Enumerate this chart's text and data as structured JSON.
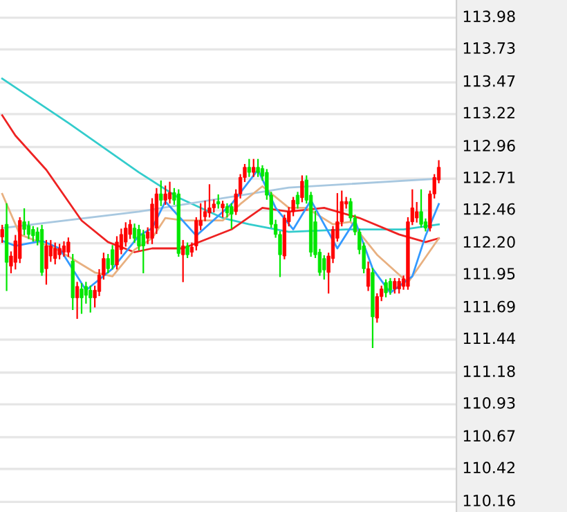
{
  "chart_data": {
    "type": "candlestick",
    "categories": [
      null,
      null,
      null,
      null,
      null,
      null,
      null,
      null,
      null,
      null,
      null,
      null,
      null,
      null,
      null,
      null,
      null,
      null,
      null,
      null,
      null,
      null,
      null,
      null,
      null,
      null,
      null,
      null,
      null,
      null,
      null,
      null,
      null,
      null,
      null,
      null,
      null,
      null,
      null,
      null,
      null,
      null,
      null,
      null,
      null,
      null,
      null,
      null,
      null,
      null,
      null,
      null,
      null,
      null,
      null,
      null,
      null,
      null,
      null,
      null,
      null,
      null,
      null,
      null,
      null,
      null,
      null,
      null,
      null,
      null,
      null,
      null,
      null,
      null,
      null,
      null,
      null,
      null,
      null,
      null,
      null,
      null,
      null,
      null,
      null,
      null,
      null,
      null,
      null,
      null,
      null,
      null,
      null,
      null,
      null,
      null,
      null,
      null,
      null,
      null
    ],
    "ohlc": [
      [
        112.25,
        112.34,
        112.21,
        112.31
      ],
      [
        112.35,
        112.51,
        111.83,
        112.05
      ],
      [
        112.02,
        112.13,
        111.97,
        112.1
      ],
      [
        112.05,
        112.26,
        112.0,
        112.22
      ],
      [
        112.08,
        112.4,
        112.05,
        112.38
      ],
      [
        112.37,
        112.47,
        112.27,
        112.31
      ],
      [
        112.34,
        112.37,
        112.24,
        112.27
      ],
      [
        112.31,
        112.33,
        112.22,
        112.26
      ],
      [
        112.29,
        112.32,
        112.19,
        112.22
      ],
      [
        112.31,
        112.34,
        111.95,
        111.97
      ],
      [
        112.0,
        112.22,
        111.88,
        112.18
      ],
      [
        112.1,
        112.22,
        112.06,
        112.18
      ],
      [
        112.08,
        112.2,
        112.04,
        112.16
      ],
      [
        112.11,
        112.19,
        112.08,
        112.16
      ],
      [
        112.13,
        112.21,
        112.1,
        112.18
      ],
      [
        112.13,
        112.24,
        112.1,
        112.21
      ],
      [
        112.06,
        112.11,
        111.68,
        111.77
      ],
      [
        111.77,
        111.89,
        111.61,
        111.86
      ],
      [
        111.84,
        111.88,
        111.65,
        111.77
      ],
      [
        111.86,
        111.89,
        111.73,
        111.79
      ],
      [
        111.83,
        111.86,
        111.66,
        111.77
      ],
      [
        111.77,
        111.86,
        111.7,
        111.83
      ],
      [
        111.82,
        111.99,
        111.79,
        111.95
      ],
      [
        111.95,
        112.12,
        111.92,
        112.08
      ],
      [
        112.08,
        112.11,
        111.97,
        112.0
      ],
      [
        112.15,
        112.18,
        112.0,
        112.03
      ],
      [
        112.03,
        112.25,
        112.0,
        112.21
      ],
      [
        112.15,
        112.31,
        112.12,
        112.27
      ],
      [
        112.21,
        112.36,
        112.18,
        112.32
      ],
      [
        112.27,
        112.38,
        112.24,
        112.35
      ],
      [
        112.32,
        112.35,
        112.21,
        112.24
      ],
      [
        112.31,
        112.34,
        112.15,
        112.18
      ],
      [
        112.27,
        112.3,
        111.97,
        112.18
      ],
      [
        112.24,
        112.32,
        112.2,
        112.29
      ],
      [
        112.24,
        112.55,
        112.2,
        112.51
      ],
      [
        112.32,
        112.63,
        112.28,
        112.59
      ],
      [
        112.59,
        112.69,
        112.5,
        112.54
      ],
      [
        112.54,
        112.65,
        112.51,
        112.59
      ],
      [
        112.55,
        112.68,
        112.52,
        112.6
      ],
      [
        112.6,
        112.63,
        112.51,
        112.54
      ],
      [
        112.59,
        112.62,
        112.1,
        112.12
      ],
      [
        112.11,
        112.22,
        111.9,
        112.18
      ],
      [
        112.18,
        112.2,
        112.09,
        112.11
      ],
      [
        112.13,
        112.2,
        112.1,
        112.17
      ],
      [
        112.18,
        112.4,
        112.15,
        112.38
      ],
      [
        112.34,
        112.51,
        112.31,
        112.38
      ],
      [
        112.41,
        112.53,
        112.38,
        112.45
      ],
      [
        112.44,
        112.66,
        112.41,
        112.48
      ],
      [
        112.48,
        112.54,
        112.45,
        112.51
      ],
      [
        112.53,
        112.58,
        112.48,
        112.51
      ],
      [
        112.48,
        112.53,
        112.41,
        112.51
      ],
      [
        112.49,
        112.51,
        112.41,
        112.44
      ],
      [
        112.49,
        112.51,
        112.32,
        112.43
      ],
      [
        112.45,
        112.62,
        112.43,
        112.59
      ],
      [
        112.59,
        112.74,
        112.56,
        112.72
      ],
      [
        112.72,
        112.82,
        112.69,
        112.8
      ],
      [
        112.8,
        112.86,
        112.73,
        112.76
      ],
      [
        112.76,
        112.86,
        112.73,
        112.8
      ],
      [
        112.8,
        112.86,
        112.73,
        112.76
      ],
      [
        112.79,
        112.81,
        112.7,
        112.73
      ],
      [
        112.76,
        112.78,
        112.55,
        112.58
      ],
      [
        112.58,
        112.6,
        112.33,
        112.35
      ],
      [
        112.35,
        112.38,
        112.25,
        112.27
      ],
      [
        112.27,
        112.29,
        111.94,
        112.11
      ],
      [
        112.1,
        112.42,
        112.08,
        112.4
      ],
      [
        112.37,
        112.48,
        112.34,
        112.45
      ],
      [
        112.45,
        112.56,
        112.42,
        112.54
      ],
      [
        112.58,
        112.6,
        112.48,
        112.51
      ],
      [
        112.56,
        112.73,
        112.53,
        112.69
      ],
      [
        112.7,
        112.73,
        112.52,
        112.54
      ],
      [
        112.58,
        112.6,
        112.1,
        112.13
      ],
      [
        112.37,
        112.45,
        112.09,
        112.11
      ],
      [
        112.13,
        112.15,
        111.95,
        111.97
      ],
      [
        112.08,
        112.1,
        111.92,
        111.99
      ],
      [
        111.97,
        112.12,
        111.81,
        112.1
      ],
      [
        112.08,
        112.33,
        112.05,
        112.31
      ],
      [
        112.24,
        112.59,
        112.22,
        112.37
      ],
      [
        112.37,
        112.61,
        112.34,
        112.53
      ],
      [
        112.51,
        112.56,
        112.48,
        112.53
      ],
      [
        112.53,
        112.55,
        112.38,
        112.4
      ],
      [
        112.4,
        112.42,
        112.27,
        112.29
      ],
      [
        112.29,
        112.31,
        112.12,
        112.15
      ],
      [
        112.18,
        112.2,
        111.97,
        112.0
      ],
      [
        111.86,
        112.05,
        111.83,
        112.0
      ],
      [
        111.97,
        112.0,
        111.38,
        111.62
      ],
      [
        111.61,
        111.8,
        111.58,
        111.78
      ],
      [
        111.78,
        111.86,
        111.75,
        111.84
      ],
      [
        111.89,
        111.91,
        111.78,
        111.81
      ],
      [
        111.9,
        111.92,
        111.8,
        111.83
      ],
      [
        111.84,
        111.92,
        111.81,
        111.9
      ],
      [
        111.84,
        111.92,
        111.81,
        111.9
      ],
      [
        111.86,
        111.94,
        111.84,
        111.92
      ],
      [
        111.86,
        112.4,
        111.84,
        112.37
      ],
      [
        112.37,
        112.62,
        112.35,
        112.48
      ],
      [
        112.4,
        112.52,
        112.37,
        112.45
      ],
      [
        112.45,
        112.62,
        112.33,
        112.35
      ],
      [
        112.37,
        112.39,
        112.3,
        112.32
      ],
      [
        112.32,
        112.61,
        112.3,
        112.59
      ],
      [
        112.59,
        112.74,
        112.56,
        112.72
      ],
      [
        112.7,
        112.85,
        112.68,
        112.8
      ]
    ],
    "colors": [
      "#ff0000",
      "#00e600",
      "#ff0000",
      "#ff0000",
      "#ff0000",
      "#00e600",
      "#00e600",
      "#00e600",
      "#00e600",
      "#00e600",
      "#ff0000",
      "#ff0000",
      "#ff0000",
      "#ff0000",
      "#ff0000",
      "#ff0000",
      "#00e600",
      "#ff0000",
      "#00e600",
      "#00e600",
      "#00e600",
      "#ff0000",
      "#ff0000",
      "#ff0000",
      "#00e600",
      "#00e600",
      "#ff0000",
      "#ff0000",
      "#ff0000",
      "#ff0000",
      "#00e600",
      "#00e600",
      "#00e600",
      "#ff0000",
      "#ff0000",
      "#ff0000",
      "#00e600",
      "#ff0000",
      "#ff0000",
      "#00e600",
      "#00e600",
      "#ff0000",
      "#00e600",
      "#ff0000",
      "#ff0000",
      "#ff0000",
      "#ff0000",
      "#ff0000",
      "#ff0000",
      "#00e600",
      "#ff0000",
      "#00e600",
      "#00e600",
      "#ff0000",
      "#ff0000",
      "#ff0000",
      "#00e600",
      "#ff0000",
      "#00e600",
      "#00e600",
      "#00e600",
      "#00e600",
      "#00e600",
      "#00e600",
      "#ff0000",
      "#ff0000",
      "#ff0000",
      "#00e600",
      "#ff0000",
      "#00e600",
      "#00e600",
      "#00e600",
      "#00e600",
      "#00e600",
      "#ff0000",
      "#ff0000",
      "#ff0000",
      "#ff0000",
      "#ff0000",
      "#00e600",
      "#00e600",
      "#00e600",
      "#00e600",
      "#ff0000",
      "#00e600",
      "#ff0000",
      "#ff0000",
      "#00e600",
      "#00e600",
      "#ff0000",
      "#ff0000",
      "#ff0000",
      "#ff0000",
      "#ff0000",
      "#ff0000",
      "#00e600",
      "#00e600",
      "#ff0000",
      "#ff0000",
      "#ff0000"
    ],
    "series": [
      {
        "type": "line",
        "color": "#33cccc",
        "values": [
          113.5,
          null,
          null,
          null,
          null,
          null,
          null,
          null,
          null,
          null,
          null,
          null,
          null,
          null,
          null,
          113.15,
          null,
          null,
          null,
          null,
          null,
          null,
          null,
          null,
          null,
          null,
          null,
          null,
          null,
          null,
          null,
          112.76,
          null,
          null,
          null,
          null,
          null,
          null,
          null,
          null,
          112.56,
          null,
          null,
          null,
          null,
          null,
          null,
          null,
          null,
          null,
          112.4,
          null,
          null,
          null,
          null,
          null,
          112.35,
          null,
          null,
          null,
          null,
          null,
          null,
          null,
          null,
          112.29,
          null,
          null,
          null,
          null,
          null,
          null,
          null,
          null,
          null,
          null,
          null,
          null,
          112.31,
          null,
          null,
          null,
          null,
          null,
          null,
          null,
          null,
          null,
          null,
          null,
          null,
          112.31,
          null,
          null,
          null,
          null,
          null,
          null,
          null,
          112.35
        ]
      },
      {
        "type": "line",
        "color": "#a8c8e0",
        "values": [
          112.32,
          null,
          null,
          null,
          null,
          null,
          null,
          null,
          null,
          null,
          null,
          null,
          null,
          null,
          null,
          null,
          null,
          null,
          null,
          null,
          null,
          null,
          null,
          null,
          null,
          null,
          null,
          null,
          null,
          null,
          null,
          112.45,
          null,
          null,
          null,
          null,
          null,
          null,
          null,
          null,
          null,
          null,
          null,
          null,
          null,
          null,
          null,
          null,
          null,
          null,
          null,
          null,
          null,
          null,
          null,
          null,
          null,
          null,
          null,
          null,
          null,
          null,
          null,
          null,
          null,
          112.64,
          null,
          null,
          null,
          null,
          null,
          null,
          null,
          null,
          null,
          null,
          null,
          null,
          null,
          null,
          null,
          null,
          null,
          null,
          null,
          null,
          null,
          null,
          null,
          null,
          null,
          null,
          null,
          null,
          null,
          null,
          null,
          null,
          null,
          112.71
        ]
      },
      {
        "type": "line",
        "color": "#ee2222",
        "values": [
          113.21,
          null,
          null,
          113.05,
          null,
          null,
          null,
          null,
          null,
          null,
          112.78,
          null,
          null,
          null,
          null,
          null,
          null,
          null,
          112.38,
          null,
          null,
          null,
          null,
          null,
          112.21,
          null,
          null,
          null,
          null,
          null,
          112.13,
          null,
          null,
          null,
          112.16,
          null,
          null,
          null,
          null,
          null,
          null,
          112.16,
          null,
          null,
          null,
          null,
          null,
          null,
          null,
          null,
          null,
          null,
          112.31,
          null,
          null,
          null,
          null,
          null,
          null,
          112.48,
          null,
          null,
          null,
          null,
          null,
          112.45,
          null,
          null,
          null,
          null,
          null,
          null,
          null,
          112.48,
          null,
          null,
          null,
          null,
          null,
          null,
          null,
          112.4,
          null,
          null,
          null,
          null,
          null,
          null,
          null,
          null,
          112.27,
          null,
          null,
          null,
          null,
          null,
          112.21,
          null,
          null,
          112.24
        ]
      },
      {
        "type": "line",
        "color": "#e8b080",
        "values": [
          112.59,
          null,
          null,
          null,
          112.27,
          null,
          null,
          null,
          null,
          null,
          null,
          null,
          112.16,
          null,
          null,
          null,
          null,
          null,
          null,
          null,
          null,
          111.97,
          null,
          null,
          null,
          111.94,
          null,
          null,
          null,
          null,
          112.15,
          null,
          null,
          null,
          112.24,
          null,
          null,
          112.4,
          null,
          null,
          null,
          112.38,
          null,
          null,
          null,
          null,
          null,
          null,
          null,
          null,
          112.38,
          null,
          null,
          null,
          112.51,
          null,
          null,
          null,
          null,
          112.65,
          null,
          null,
          null,
          null,
          null,
          112.48,
          null,
          null,
          null,
          112.48,
          null,
          null,
          null,
          null,
          null,
          112.35,
          null,
          null,
          null,
          112.37,
          null,
          null,
          null,
          null,
          null,
          112.11,
          null,
          null,
          null,
          null,
          null,
          null,
          111.89,
          null,
          null,
          null,
          null,
          null,
          null,
          112.24
        ]
      },
      {
        "type": "line",
        "color": "#3399ff",
        "values": [
          112.22,
          null,
          null,
          112.18,
          null,
          null,
          null,
          null,
          null,
          112.22,
          null,
          null,
          null,
          112.16,
          null,
          null,
          null,
          null,
          null,
          111.83,
          null,
          null,
          null,
          null,
          null,
          112.0,
          null,
          null,
          null,
          null,
          null,
          112.26,
          null,
          null,
          112.32,
          null,
          null,
          112.53,
          null,
          null,
          null,
          null,
          null,
          null,
          112.26,
          null,
          null,
          null,
          null,
          null,
          null,
          null,
          112.51,
          null,
          null,
          null,
          null,
          null,
          112.78,
          null,
          null,
          null,
          112.48,
          null,
          null,
          null,
          112.31,
          null,
          null,
          null,
          112.54,
          null,
          null,
          null,
          null,
          null,
          112.16,
          null,
          null,
          null,
          112.38,
          null,
          null,
          null,
          112.0,
          null,
          null,
          null,
          111.81,
          null,
          null,
          null,
          null,
          111.94,
          null,
          null,
          112.26,
          null,
          null,
          112.51
        ]
      }
    ],
    "ylim": [
      110.08,
      114.12
    ],
    "yticks": [
      113.98,
      113.73,
      113.47,
      113.22,
      112.96,
      112.71,
      112.46,
      {
        "value": 112.2,
        "label": "112.20"
      },
      111.95,
      111.69,
      111.44,
      111.18,
      110.93,
      110.67,
      110.42,
      110.16
    ],
    "grid": "y",
    "tick_labels": "y"
  }
}
